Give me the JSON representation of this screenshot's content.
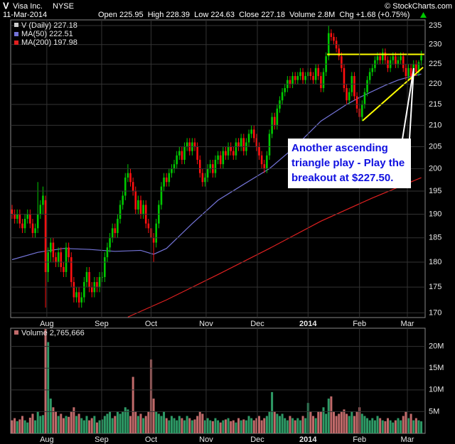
{
  "header": {
    "symbol": "V",
    "company": "Visa Inc.",
    "exchange": "NYSE",
    "source": "© StockCharts.com",
    "date": "11-Mar-2014",
    "quote": "Open 225.95  High 228.39  Low 224.63  Close 227.18  Volume 2.8M  Chg +1.68 (+0.75%)"
  },
  "chart_data": [
    {
      "type": "candlestick",
      "name": "V (Daily) 227.18",
      "log_scale": true,
      "grid": true,
      "up_color": "#00c800",
      "down_color": "#ff1010",
      "xlim": [
        -0.55,
        160.5
      ],
      "ylim": [
        169.1,
        236.5
      ],
      "yticks": [
        170,
        175,
        180,
        185,
        190,
        195,
        200,
        205,
        210,
        215,
        220,
        225,
        230,
        235
      ],
      "xticks": [
        {
          "value": 13.5,
          "label": "Aug"
        },
        {
          "value": 34.8,
          "label": "Sep"
        },
        {
          "value": 54,
          "label": "Oct"
        },
        {
          "value": 75.4,
          "label": "Nov"
        },
        {
          "value": 95.3,
          "label": "Dec"
        },
        {
          "value": 115,
          "label": "2014"
        },
        {
          "value": 135,
          "label": "Feb"
        },
        {
          "value": 153.6,
          "label": "Mar"
        }
      ],
      "ohlc": [
        [
          191,
          192,
          189,
          190
        ],
        [
          190,
          191,
          188,
          189
        ],
        [
          189,
          191,
          188,
          190
        ],
        [
          190,
          191,
          187,
          188
        ],
        [
          188,
          189,
          186,
          187
        ],
        [
          187,
          190,
          186,
          189
        ],
        [
          189,
          191,
          188,
          190
        ],
        [
          190,
          191,
          187,
          188
        ],
        [
          188,
          189,
          185,
          186
        ],
        [
          186,
          188,
          185,
          187
        ],
        [
          187,
          197,
          186,
          190
        ],
        [
          190,
          193,
          189,
          192
        ],
        [
          192,
          196,
          190,
          194
        ],
        [
          193,
          194,
          171,
          178
        ],
        [
          178,
          183,
          176,
          182
        ],
        [
          182,
          185,
          180,
          184
        ],
        [
          184,
          185,
          180,
          181
        ],
        [
          181,
          182,
          179,
          180
        ],
        [
          180,
          183,
          179,
          182
        ],
        [
          182,
          183,
          178,
          179
        ],
        [
          179,
          180,
          177,
          178
        ],
        [
          178,
          184,
          177,
          183
        ],
        [
          183,
          184,
          180,
          181
        ],
        [
          181,
          182,
          175,
          176
        ],
        [
          176,
          177,
          172,
          173
        ],
        [
          173,
          175,
          172,
          174
        ],
        [
          174,
          175,
          171,
          172
        ],
        [
          172,
          174,
          171,
          173
        ],
        [
          173,
          177,
          172,
          176
        ],
        [
          176,
          179,
          175,
          178
        ],
        [
          178,
          179,
          174,
          175
        ],
        [
          175,
          176,
          173,
          174
        ],
        [
          174,
          177,
          173,
          176
        ],
        [
          176,
          177,
          174,
          175
        ],
        [
          175,
          178,
          174,
          177
        ],
        [
          177,
          178,
          176,
          177
        ],
        [
          177,
          182,
          176,
          181
        ],
        [
          181,
          184,
          180,
          183
        ],
        [
          183,
          186,
          182,
          185
        ],
        [
          185,
          188,
          184,
          187
        ],
        [
          187,
          188,
          185,
          186
        ],
        [
          186,
          190,
          185,
          189
        ],
        [
          189,
          193,
          188,
          192
        ],
        [
          192,
          195,
          191,
          194
        ],
        [
          194,
          199,
          193,
          198
        ],
        [
          198,
          201,
          197,
          199
        ],
        [
          199,
          200,
          196,
          197
        ],
        [
          197,
          198,
          194,
          195
        ],
        [
          195,
          196,
          190,
          191
        ],
        [
          191,
          194,
          190,
          193
        ],
        [
          193,
          194,
          189,
          190
        ],
        [
          190,
          193,
          189,
          192
        ],
        [
          192,
          193,
          187,
          188
        ],
        [
          188,
          189,
          186,
          187
        ],
        [
          187,
          188,
          183,
          185
        ],
        [
          185,
          186,
          180,
          184
        ],
        [
          184,
          189,
          183,
          188
        ],
        [
          188,
          193,
          187,
          192
        ],
        [
          192,
          197,
          191,
          196
        ],
        [
          196,
          199,
          195,
          198
        ],
        [
          198,
          199,
          196,
          197
        ],
        [
          197,
          200,
          196,
          199
        ],
        [
          199,
          201,
          198,
          200
        ],
        [
          200,
          202,
          199,
          201
        ],
        [
          201,
          204,
          200,
          203
        ],
        [
          203,
          205,
          202,
          204
        ],
        [
          204,
          205,
          201,
          202
        ],
        [
          202,
          206,
          201,
          205
        ],
        [
          205,
          207,
          204,
          206
        ],
        [
          206,
          207,
          203,
          204
        ],
        [
          204,
          207,
          203,
          206
        ],
        [
          206,
          207,
          204,
          205
        ],
        [
          205,
          206,
          201,
          202
        ],
        [
          202,
          203,
          198,
          199
        ],
        [
          199,
          200,
          196,
          197
        ],
        [
          197,
          199,
          196,
          198
        ],
        [
          198,
          201,
          197,
          200
        ],
        [
          200,
          202,
          199,
          201
        ],
        [
          201,
          202,
          198,
          199
        ],
        [
          199,
          203,
          198,
          202
        ],
        [
          202,
          204,
          201,
          203
        ],
        [
          203,
          204,
          200,
          201
        ],
        [
          201,
          205,
          200,
          204
        ],
        [
          204,
          205,
          202,
          203
        ],
        [
          203,
          206,
          202,
          205
        ],
        [
          205,
          206,
          203,
          204
        ],
        [
          204,
          205,
          202,
          203
        ],
        [
          203,
          207,
          202,
          206
        ],
        [
          206,
          207,
          204,
          205
        ],
        [
          205,
          208,
          204,
          207
        ],
        [
          207,
          208,
          203,
          204
        ],
        [
          204,
          207,
          203,
          206
        ],
        [
          206,
          209,
          205,
          208
        ],
        [
          208,
          210,
          207,
          209
        ],
        [
          209,
          210,
          206,
          207
        ],
        [
          207,
          208,
          204,
          205
        ],
        [
          205,
          206,
          202,
          203
        ],
        [
          203,
          204,
          200,
          201
        ],
        [
          201,
          202,
          199,
          200
        ],
        [
          200,
          204,
          199,
          203
        ],
        [
          203,
          209,
          202,
          208
        ],
        [
          208,
          213,
          207,
          212
        ],
        [
          212,
          213,
          209,
          210
        ],
        [
          210,
          215,
          209,
          214
        ],
        [
          214,
          217,
          213,
          216
        ],
        [
          216,
          219,
          215,
          218
        ],
        [
          218,
          220,
          217,
          219
        ],
        [
          219,
          222,
          218,
          221
        ],
        [
          221,
          222,
          219,
          220
        ],
        [
          220,
          223,
          219,
          222
        ],
        [
          222,
          223,
          220,
          221
        ],
        [
          221,
          223,
          220,
          222
        ],
        [
          222,
          224,
          221,
          223
        ],
        [
          223,
          224,
          220,
          221
        ],
        [
          221,
          223,
          220,
          222
        ],
        [
          222,
          224,
          221,
          223
        ],
        [
          223,
          224,
          221,
          222
        ],
        [
          222,
          223,
          220,
          221
        ],
        [
          221,
          225,
          220,
          224
        ],
        [
          224,
          225,
          221,
          222
        ],
        [
          222,
          223,
          218,
          219
        ],
        [
          219,
          224,
          218,
          223
        ],
        [
          223,
          228,
          222,
          227
        ],
        [
          227,
          235,
          226,
          233
        ],
        [
          233,
          234,
          231,
          232
        ],
        [
          232,
          233,
          230,
          231
        ],
        [
          231,
          232,
          228,
          229
        ],
        [
          229,
          230,
          226,
          227
        ],
        [
          227,
          228,
          223,
          224
        ],
        [
          224,
          225,
          218,
          219
        ],
        [
          219,
          220,
          215,
          216
        ],
        [
          216,
          219,
          215,
          218
        ],
        [
          218,
          223,
          217,
          222
        ],
        [
          222,
          223,
          216,
          217
        ],
        [
          217,
          218,
          213,
          214
        ],
        [
          214,
          215,
          211,
          212
        ],
        [
          212,
          216,
          211,
          215
        ],
        [
          215,
          219,
          214,
          218
        ],
        [
          218,
          222,
          217,
          221
        ],
        [
          221,
          224,
          220,
          223
        ],
        [
          223,
          225,
          222,
          224
        ],
        [
          224,
          227,
          223,
          226
        ],
        [
          226,
          228,
          225,
          227
        ],
        [
          227,
          228,
          225,
          226
        ],
        [
          226,
          229,
          225,
          228
        ],
        [
          228,
          229,
          225,
          226
        ],
        [
          226,
          227,
          223,
          224
        ],
        [
          224,
          227,
          223,
          226
        ],
        [
          226,
          228,
          225,
          227
        ],
        [
          227,
          228,
          224,
          225
        ],
        [
          225,
          227,
          224,
          226
        ],
        [
          226,
          228,
          225,
          227
        ],
        [
          227,
          228,
          223,
          224
        ],
        [
          224,
          225,
          221,
          222
        ],
        [
          222,
          225,
          221,
          224
        ],
        [
          224,
          225,
          221,
          222
        ],
        [
          222,
          226,
          221,
          225
        ],
        [
          225,
          226,
          222,
          223
        ],
        [
          223,
          226,
          222,
          225.5
        ],
        [
          225.95,
          228.39,
          224.63,
          227.18
        ]
      ],
      "series": [
        {
          "name": "MA(50) 222.51",
          "color": "#7474d8",
          "x": [
            0,
            10,
            20,
            30,
            40,
            50,
            55,
            60,
            70,
            80,
            90,
            100,
            110,
            115,
            120,
            125,
            130,
            135,
            140,
            145,
            150,
            155,
            159
          ],
          "values": [
            180.5,
            182,
            182.8,
            182.6,
            182.2,
            182.4,
            181.6,
            182.8,
            188,
            193,
            196.5,
            200,
            205,
            208,
            211,
            213,
            215,
            216.7,
            218.2,
            219.7,
            221,
            221.9,
            222.51
          ]
        },
        {
          "name": "MA(200) 197.98",
          "color": "#e02020",
          "x": [
            45,
            60,
            80,
            100,
            120,
            140,
            159
          ],
          "values": [
            169.2,
            172.5,
            177.5,
            182.8,
            188.5,
            193.5,
            197.98
          ]
        }
      ],
      "trend_lines": [
        {
          "color": "#ffff00",
          "x": [
            122.4,
            160.2
          ],
          "y": [
            227.5,
            227.5
          ]
        },
        {
          "color": "#ffff00",
          "x": [
            136.2,
            159.7
          ],
          "y": [
            211.1,
            224.2
          ]
        }
      ],
      "annotation_text": [
        "Another ascending",
        "triangle play - Play the",
        "breakout at $227.50."
      ]
    },
    {
      "type": "bar",
      "title": "Volume 2,765,666",
      "grid": true,
      "ylim": [
        0,
        24.2
      ],
      "yticks": [
        {
          "value": 5,
          "label": "5M"
        },
        {
          "value": 10,
          "label": "10M"
        },
        {
          "value": 15,
          "label": "15M"
        },
        {
          "value": 20,
          "label": "20M"
        }
      ],
      "xticks": [
        {
          "value": 13.5,
          "label": "Aug"
        },
        {
          "value": 34.8,
          "label": "Sep"
        },
        {
          "value": 54,
          "label": "Oct"
        },
        {
          "value": 75.4,
          "label": "Nov"
        },
        {
          "value": 95.3,
          "label": "Dec"
        },
        {
          "value": 115,
          "label": "2014"
        },
        {
          "value": 135,
          "label": "Feb"
        },
        {
          "value": 153.6,
          "label": "Mar"
        }
      ],
      "up_color": "#2e9a66",
      "down_color": "#c06a6a",
      "values": [
        3,
        3.5,
        2.8,
        3.2,
        4,
        3,
        2.5,
        3.6,
        4.5,
        3,
        5,
        4,
        4.2,
        24,
        21,
        8,
        6,
        5,
        4,
        4.5,
        3.5,
        4,
        3.8,
        5,
        6,
        4,
        4.5,
        3.5,
        3,
        4,
        3,
        3.5,
        4,
        2.5,
        3,
        3.2,
        4,
        4.5,
        5,
        3.5,
        4,
        5,
        4.5,
        5,
        6,
        5.5,
        4,
        13,
        5,
        4,
        4.5,
        3.5,
        4,
        5,
        17,
        8,
        5,
        4.5,
        4,
        5,
        3.5,
        3,
        4,
        3.5,
        3,
        4,
        3.5,
        3,
        4,
        3.5,
        3,
        3.2,
        4,
        5,
        4.5,
        3,
        3.5,
        3,
        2.8,
        3.5,
        3,
        2.5,
        3,
        3.2,
        3.5,
        2.8,
        3,
        2.5,
        3.5,
        3,
        3.2,
        3,
        4,
        3.5,
        3,
        3.5,
        4,
        3,
        3.5,
        4,
        5,
        9.5,
        5,
        4.5,
        4,
        4.5,
        3.5,
        3,
        4,
        3.5,
        3,
        3.5,
        3,
        4,
        3.5,
        7,
        5,
        4,
        3.5,
        5,
        5,
        6,
        4.5,
        8,
        8.5,
        5,
        4,
        4.5,
        5,
        5.5,
        4.5,
        4,
        5,
        4,
        5,
        6,
        4.5,
        4,
        3.5,
        3,
        3.5,
        3,
        4,
        3.5,
        3,
        2.8,
        3.5,
        3,
        2.5,
        3,
        3.5,
        3,
        4,
        5,
        3.5,
        4.5,
        3,
        3.5,
        3,
        2.765666
      ]
    }
  ]
}
